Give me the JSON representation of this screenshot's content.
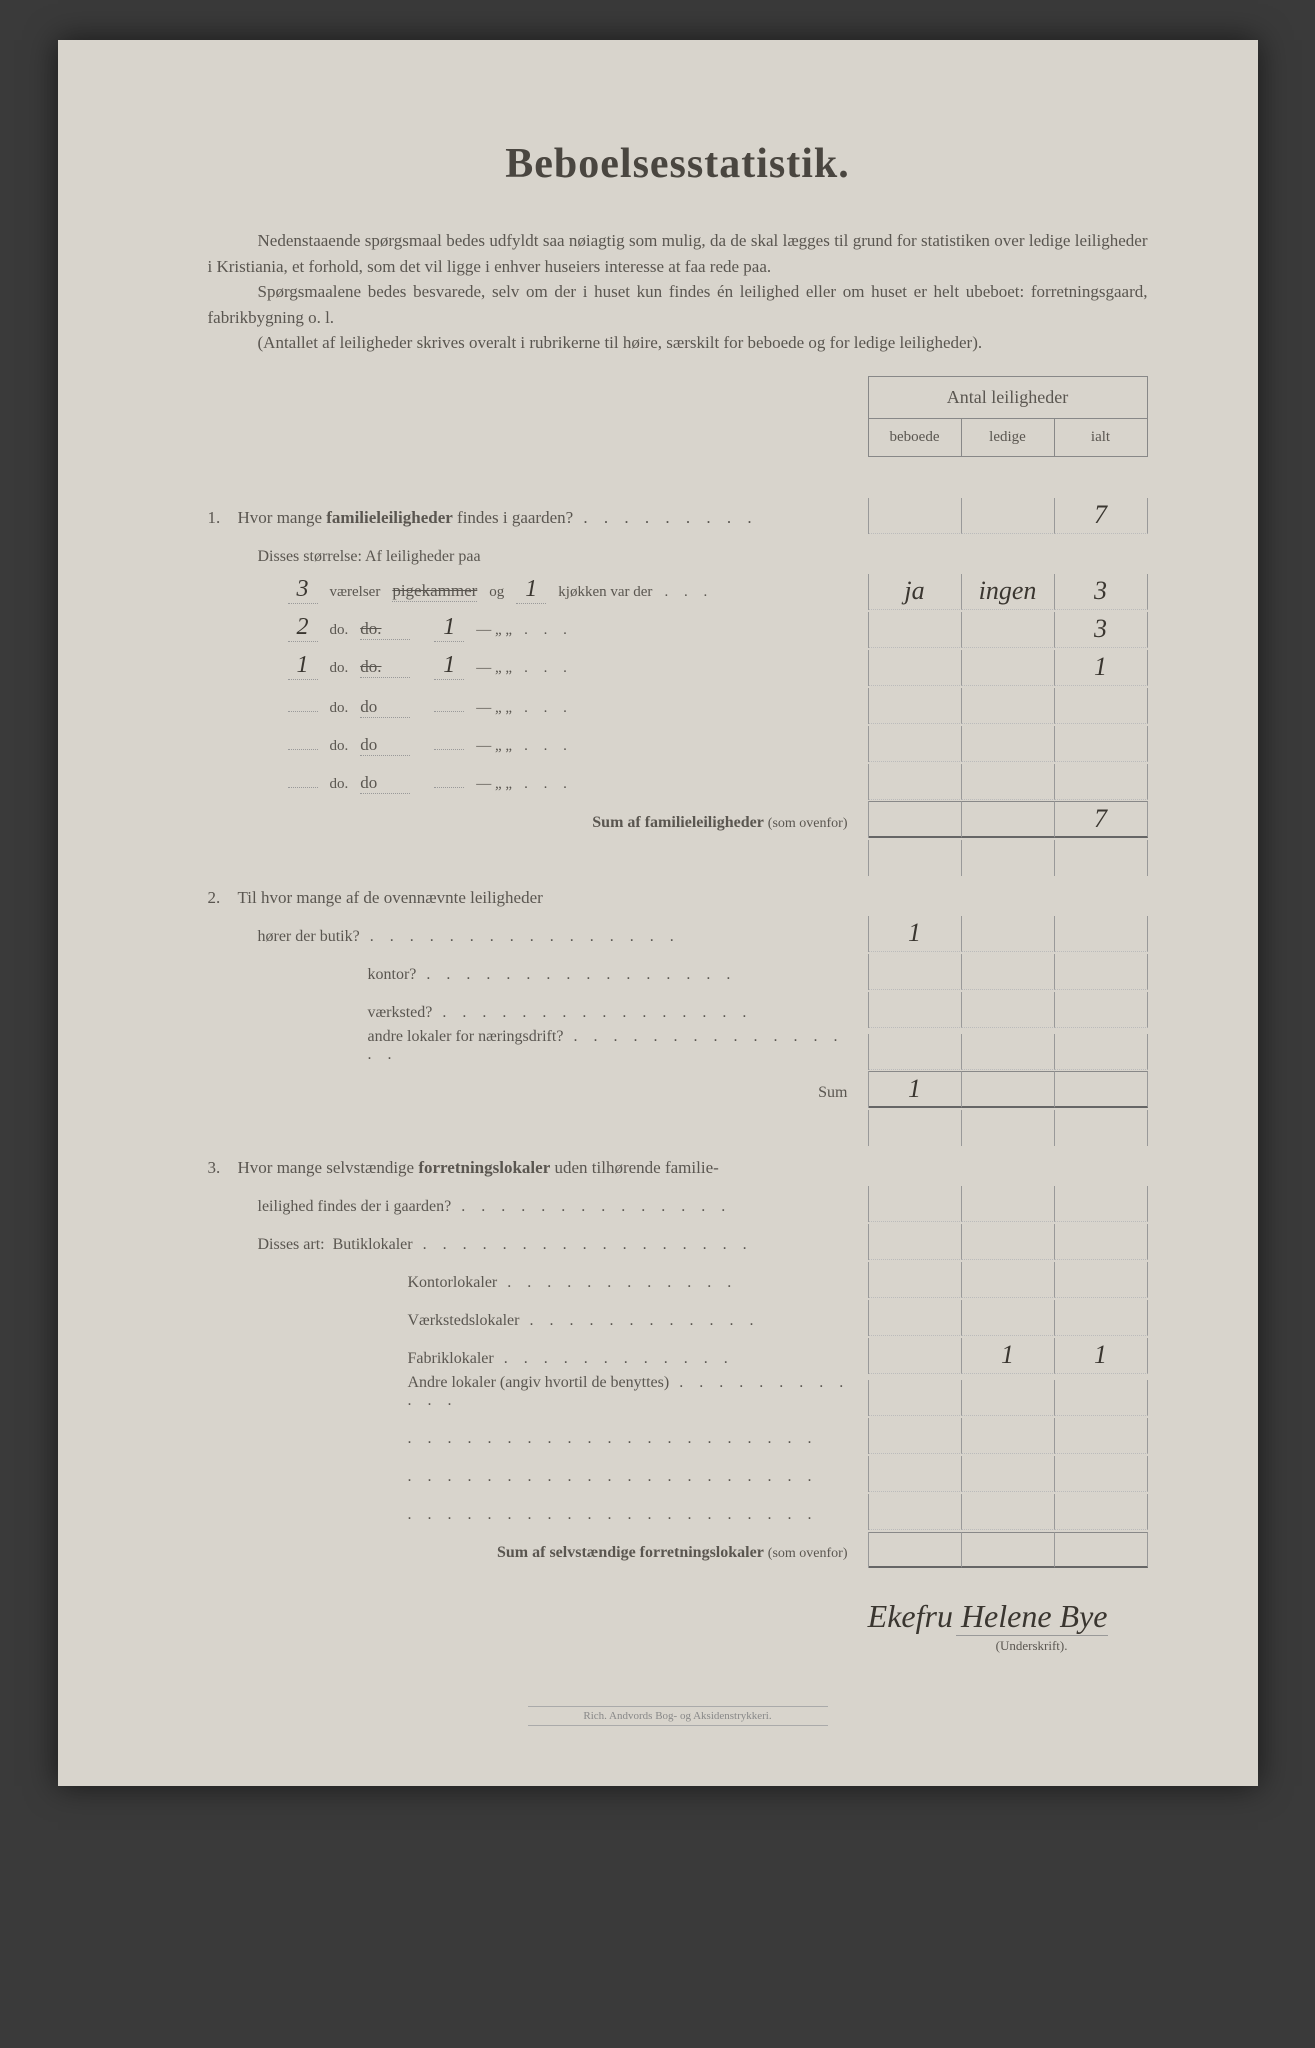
{
  "title": "Beboelsesstatistik.",
  "intro": {
    "p1": "Nedenstaaende spørgsmaal bedes udfyldt saa nøiagtig som mulig, da de skal lægges til grund for statistiken over ledige leiligheder i Kristiania, et forhold, som det vil ligge i enhver huseiers interesse at faa rede paa.",
    "p2": "Spørgsmaalene bedes besvarede, selv om der i huset kun findes én leilighed eller om huset er helt ubeboet: forretningsgaard, fabrikbygning o. l.",
    "p3": "(Antallet af leiligheder skrives overalt i rubrikerne til høire, særskilt for beboede og for ledige leiligheder)."
  },
  "header": {
    "top": "Antal leiligheder",
    "c1": "beboede",
    "c2": "ledige",
    "c3": "ialt"
  },
  "q1": {
    "label": "Hvor mange familieleiligheder findes i gaarden?",
    "total": "7",
    "sizes_label": "Disses størrelse:  Af leiligheder paa",
    "rows": [
      {
        "rooms": "3",
        "word": "værelser",
        "pk": "pigekammer",
        "og": "og",
        "kitchen": "kjøkken var der",
        "k": "1",
        "b": "ja",
        "l": "ingen",
        "t": "3"
      },
      {
        "rooms": "2",
        "word": "do.",
        "pk": "do.",
        "og": "",
        "kitchen": "—    „  „",
        "k": "1",
        "b": "",
        "l": "",
        "t": "3"
      },
      {
        "rooms": "1",
        "word": "do.",
        "pk": "do.",
        "og": "",
        "kitchen": "—    „  „",
        "k": "1",
        "b": "",
        "l": "",
        "t": "1"
      },
      {
        "rooms": "",
        "word": "do.",
        "pk": "do",
        "og": "",
        "kitchen": "—    „  „",
        "k": "",
        "b": "",
        "l": "",
        "t": ""
      },
      {
        "rooms": "",
        "word": "do.",
        "pk": "do",
        "og": "",
        "kitchen": "—    „  „",
        "k": "",
        "b": "",
        "l": "",
        "t": ""
      },
      {
        "rooms": "",
        "word": "do.",
        "pk": "do",
        "og": "",
        "kitchen": "—    „  „",
        "k": "",
        "b": "",
        "l": "",
        "t": ""
      }
    ],
    "sum_label": "Sum af familieleiligheder (som ovenfor)",
    "sum": "7"
  },
  "q2": {
    "label": "Til hvor mange af de ovennævnte leiligheder",
    "rows": [
      {
        "label": "hører der butik?",
        "b": "1",
        "l": "",
        "t": ""
      },
      {
        "label": "kontor?",
        "b": "",
        "l": "",
        "t": ""
      },
      {
        "label": "værksted?",
        "b": "",
        "l": "",
        "t": ""
      },
      {
        "label": "andre lokaler for næringsdrift?",
        "b": "",
        "l": "",
        "t": ""
      }
    ],
    "sum_label": "Sum",
    "sum_b": "1"
  },
  "q3": {
    "label": "Hvor mange selvstændige forretningslokaler uden tilhørende familie-leilighed findes der i gaarden?",
    "art_label": "Disses art:",
    "rows": [
      {
        "label": "Butiklokaler",
        "b": "",
        "l": "",
        "t": ""
      },
      {
        "label": "Kontorlokaler",
        "b": "",
        "l": "",
        "t": ""
      },
      {
        "label": "Værkstedslokaler",
        "b": "",
        "l": "",
        "t": ""
      },
      {
        "label": "Fabriklokaler",
        "b": "",
        "l": "1",
        "t": "1"
      },
      {
        "label": "Andre lokaler (angiv hvortil de benyttes)",
        "b": "",
        "l": "",
        "t": ""
      }
    ],
    "extra_rows": 3,
    "sum_label": "Sum af selvstændige forretningslokaler (som ovenfor)"
  },
  "signature": {
    "handwritten": "Ekefru Helene Bye",
    "label": "(Underskrift)."
  },
  "footer": "Rich. Andvords Bog- og Aksidenstrykkeri."
}
